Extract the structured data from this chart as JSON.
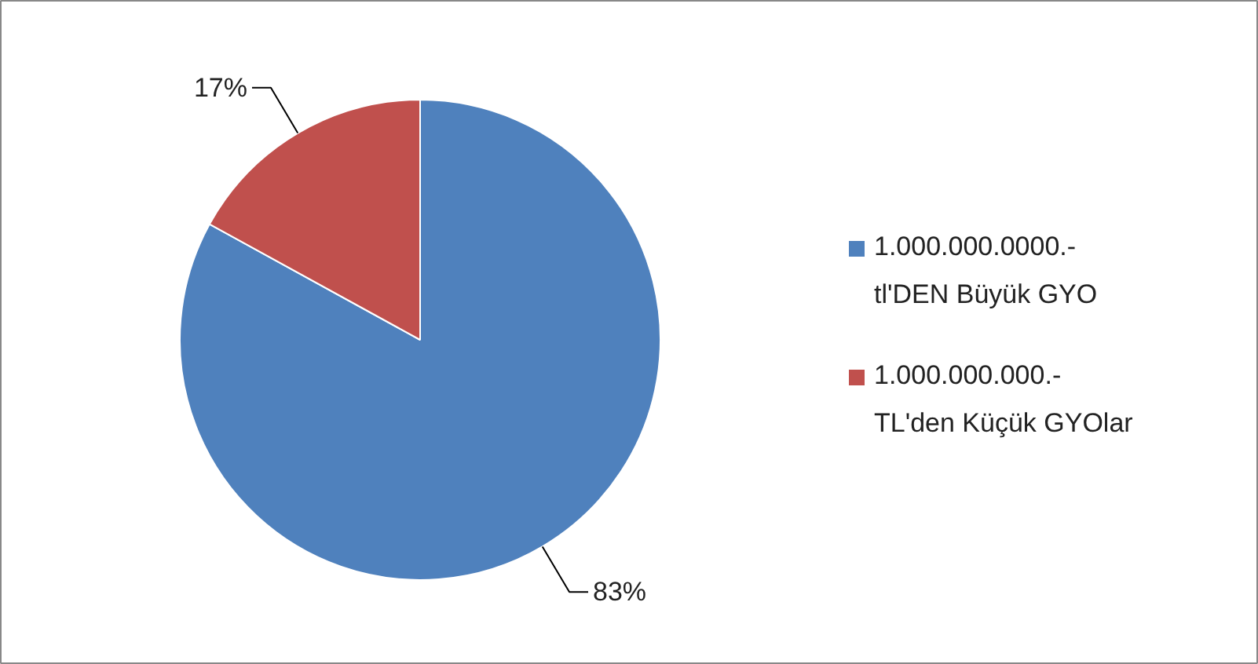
{
  "chart_data": {
    "type": "pie",
    "categories": [
      "1.000.000.0000.- tl'DEN Büyük GYO",
      "1.000.000.000.- TL'den Küçük GYOlar"
    ],
    "values": [
      83,
      17
    ],
    "colors": [
      "#4f81bd",
      "#c0504d"
    ],
    "value_labels": [
      "83%",
      "17%"
    ],
    "legend": "right"
  }
}
